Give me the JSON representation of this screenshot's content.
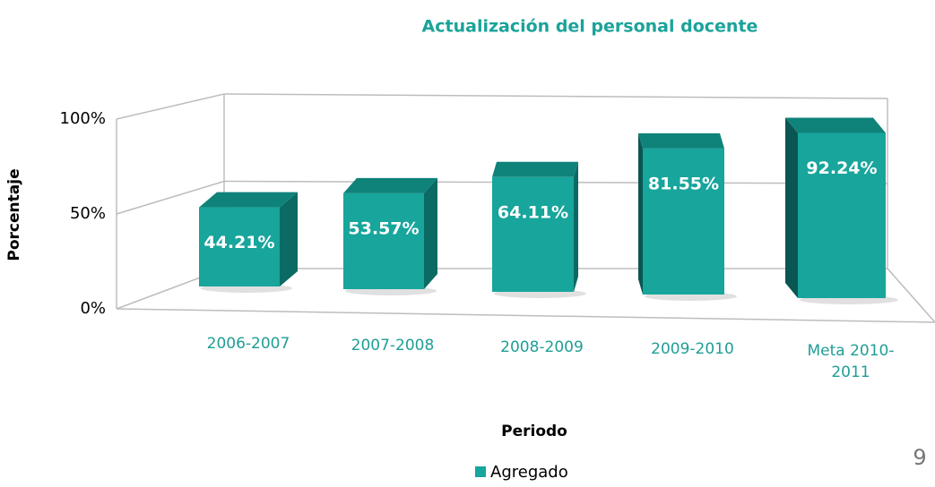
{
  "chart_data": {
    "type": "bar3d",
    "title": "Actualización del personal docente",
    "x_label": "Periodo",
    "y_label": "Porcentaje",
    "categories": [
      "2006-2007",
      "2007-2008",
      "2008-2009",
      "2009-2010",
      "Meta 2010-2011"
    ],
    "series": [
      {
        "name": "Agregado",
        "color": "#17a59c",
        "values": [
          44.21,
          53.57,
          64.11,
          81.55,
          92.24
        ],
        "value_labels": [
          "44.21%",
          "53.57%",
          "64.11%",
          "81.55%",
          "92.24%"
        ]
      }
    ],
    "ylim": [
      0,
      100
    ],
    "yticks": [
      {
        "value": 0,
        "label": "0%"
      },
      {
        "value": 50,
        "label": "50%"
      },
      {
        "value": 100,
        "label": "100%"
      }
    ],
    "grid": true,
    "legend": "bottom"
  },
  "page_number": "9"
}
